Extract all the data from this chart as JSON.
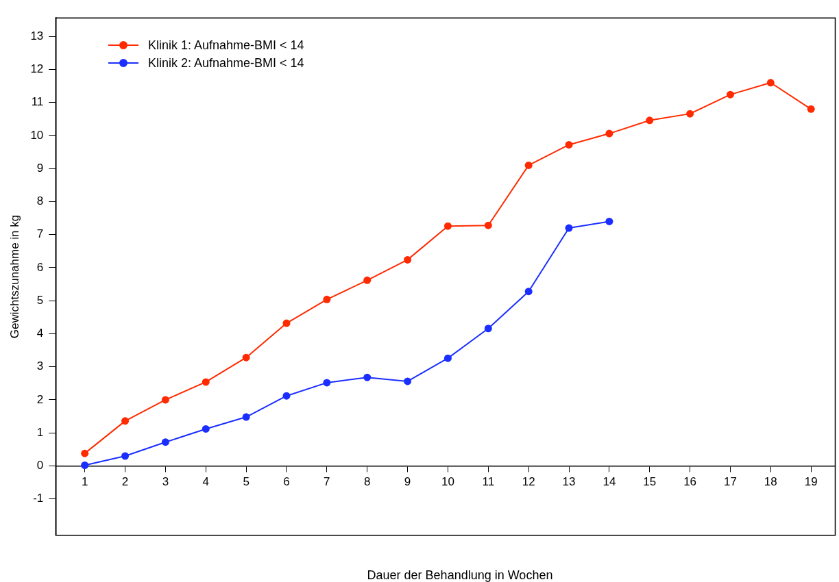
{
  "chart_data": {
    "type": "line",
    "xlabel": "Dauer der Behandlung in Wochen",
    "ylabel": "Gewichtszunahme in kg",
    "x": [
      1,
      2,
      3,
      4,
      5,
      6,
      7,
      8,
      9,
      10,
      11,
      12,
      13,
      14,
      15,
      16,
      17,
      18,
      19
    ],
    "series": [
      {
        "name": "Klinik 1: Aufnahme-BMI < 14",
        "color": "#ff2a00",
        "values": [
          0.38,
          1.36,
          2.0,
          2.54,
          3.28,
          4.32,
          5.04,
          5.62,
          6.24,
          7.26,
          7.28,
          9.1,
          9.72,
          10.06,
          10.46,
          10.66,
          11.24,
          11.6,
          10.8
        ]
      },
      {
        "name": "Klinik 2: Aufnahme-BMI < 14",
        "color": "#1a2eff",
        "values": [
          0.02,
          0.3,
          0.72,
          1.12,
          1.48,
          2.12,
          2.52,
          2.68,
          2.56,
          3.26,
          4.16,
          5.28,
          7.2,
          7.4,
          null,
          null,
          null,
          null,
          null
        ]
      }
    ],
    "xlim": [
      0.28,
      19.6
    ],
    "xticks": [
      1,
      2,
      3,
      4,
      5,
      6,
      7,
      8,
      9,
      10,
      11,
      12,
      13,
      14,
      15,
      16,
      17,
      18,
      19
    ],
    "ylim": [
      -2.1,
      13.56
    ],
    "yticks": [
      -1,
      0,
      1,
      2,
      3,
      4,
      5,
      6,
      7,
      8,
      9,
      10,
      11,
      12,
      13
    ],
    "grid": false,
    "legend": "top left",
    "marker": "circle",
    "line_style": "solid"
  }
}
